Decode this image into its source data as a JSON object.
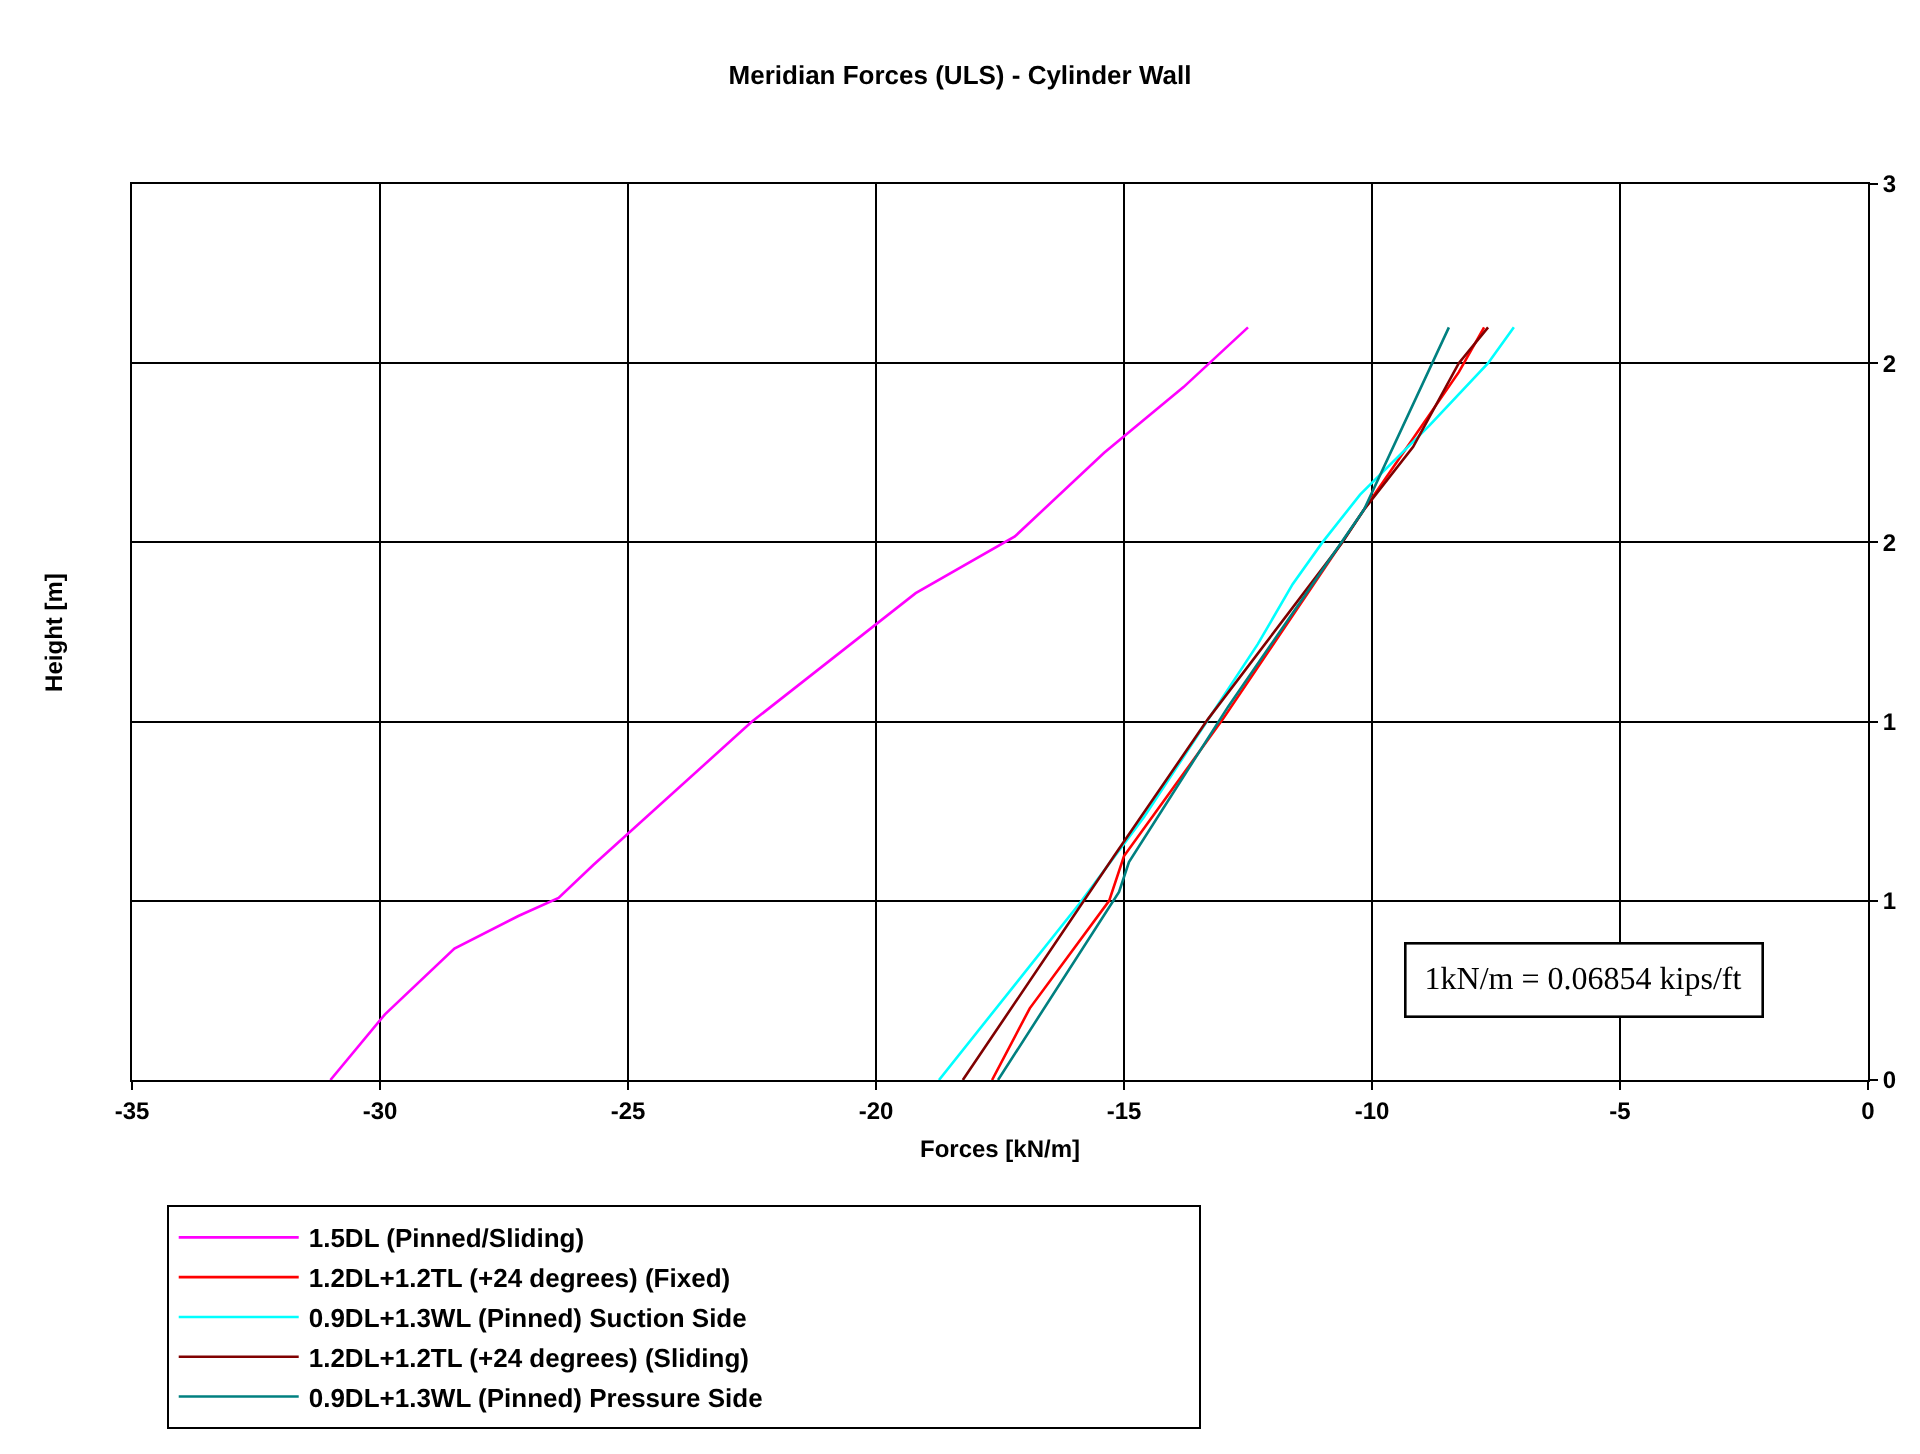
{
  "chart_data": {
    "type": "line",
    "title": "Meridian Forces (ULS) - Cylinder Wall",
    "xlabel": "Forces [kN/m]",
    "ylabel": "Height [m]",
    "xlim": [
      -35,
      0
    ],
    "xticks": [
      -35,
      -30,
      -25,
      -20,
      -15,
      -10,
      -5,
      0
    ],
    "ylim": [
      0,
      3
    ],
    "yticks": [
      0,
      {
        "value": 0.6,
        "label": "1"
      },
      {
        "value": 1.2,
        "label": "1"
      },
      {
        "value": 1.8,
        "label": "2"
      },
      {
        "value": 2.4,
        "label": "2"
      },
      3
    ],
    "grid": true,
    "legend": "bottom",
    "marker": "none",
    "line_style": "solid",
    "annotations": [
      "1kN/m = 0.06854 kips/ft"
    ],
    "series": [
      {
        "name": "1.5DL (Pinned/Sliding)",
        "color": "#ff00ff",
        "x": [
          -31.0,
          -29.9,
          -28.5,
          -27.2,
          -26.4,
          -25.7,
          -22.5,
          -19.2,
          -17.2,
          -15.4,
          -13.8,
          -12.5
        ],
        "values": [
          0,
          0.22,
          0.44,
          0.55,
          0.61,
          0.72,
          1.2,
          1.63,
          1.82,
          2.1,
          2.32,
          2.52
        ]
      },
      {
        "name": "1.2DL+1.2TL (+24 degrees) (Fixed)",
        "color": "#ff0000",
        "x": [
          -17.66,
          -16.9,
          -15.3,
          -15.0,
          -13.0,
          -10.16,
          -8.25,
          -7.74
        ],
        "values": [
          0,
          0.24,
          0.6,
          0.75,
          1.21,
          1.91,
          2.37,
          2.52
        ]
      },
      {
        "name": "0.9DL+1.3WL (Pinned) Suction Side",
        "color": "#00ffff",
        "x": [
          -18.73,
          -15.9,
          -14.6,
          -12.3,
          -11.6,
          -11.0,
          -10.24,
          -8.85,
          -7.66,
          -7.14
        ],
        "values": [
          0,
          0.59,
          0.88,
          1.46,
          1.66,
          1.8,
          1.96,
          2.19,
          2.4,
          2.52
        ]
      },
      {
        "name": "1.2DL+1.2TL (+24 degrees) (Sliding)",
        "color": "#800000",
        "x": [
          -18.25,
          -15.2,
          -13.3,
          -10.6,
          -10.16,
          -9.17,
          -8.25,
          -7.66
        ],
        "values": [
          0,
          0.75,
          1.21,
          1.8,
          1.91,
          2.12,
          2.4,
          2.52
        ]
      },
      {
        "name": "0.9DL+1.3WL (Pinned) Pressure Side",
        "color": "#008080",
        "x": [
          -17.54,
          -15.1,
          -14.9,
          -12.9,
          -10.16,
          -8.45
        ],
        "values": [
          0,
          0.63,
          0.73,
          1.25,
          1.91,
          2.52
        ]
      }
    ]
  }
}
